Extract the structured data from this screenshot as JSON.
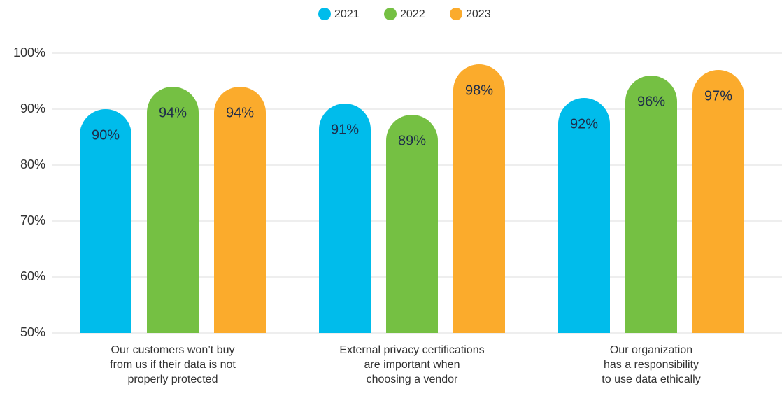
{
  "chart_data": {
    "type": "bar",
    "categories": [
      "Our customers won’t buy\nfrom us if their data is not\nproperly protected",
      "External privacy certifications\nare important when\nchoosing a vendor",
      "Our organization\nhas a responsibility\nto use data ethically"
    ],
    "series": [
      {
        "name": "2021",
        "color": "#00bceb",
        "values": [
          90,
          91,
          92
        ],
        "value_labels": [
          "90%",
          "91%",
          "92%"
        ]
      },
      {
        "name": "2022",
        "color": "#75c043",
        "values": [
          94,
          89,
          96
        ],
        "value_labels": [
          "94%",
          "89%",
          "96%"
        ]
      },
      {
        "name": "2023",
        "color": "#fbab2c",
        "values": [
          94,
          98,
          97
        ],
        "value_labels": [
          "94%",
          "98%",
          "97%"
        ]
      }
    ],
    "ylim": [
      50,
      100
    ],
    "yticks": [
      {
        "value": 50,
        "label": "50%"
      },
      {
        "value": 60,
        "label": "60%"
      },
      {
        "value": 70,
        "label": "70%"
      },
      {
        "value": 80,
        "label": "80%"
      },
      {
        "value": 90,
        "label": "90%"
      },
      {
        "value": 100,
        "label": "100%"
      }
    ],
    "grid": true,
    "legend": "top"
  }
}
